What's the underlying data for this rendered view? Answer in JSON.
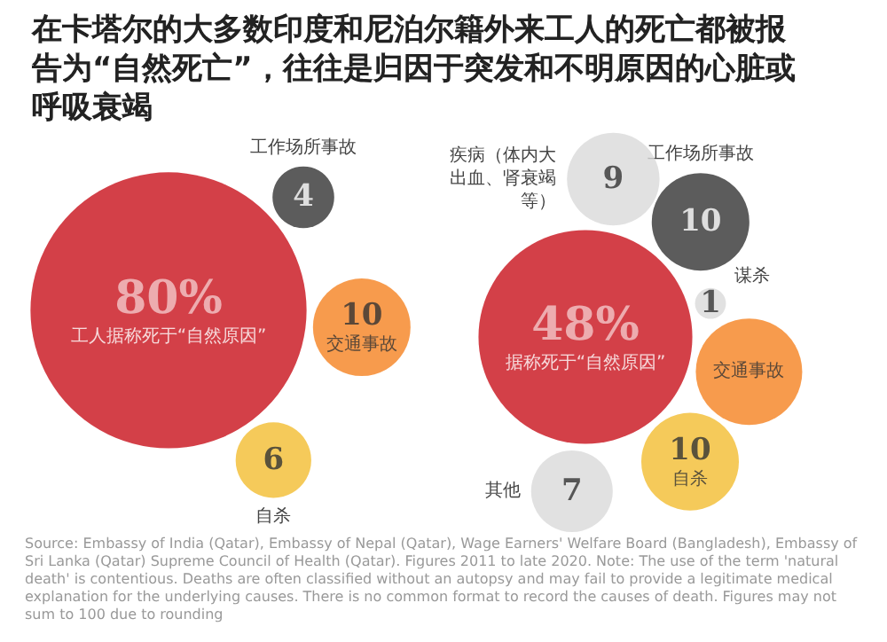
{
  "chart_data": [
    {
      "type": "other",
      "title": "在卡塔尔的大多数印度和尼泊尔籍外来工人的死亡都被报告为“自然死亡”，往往是归因于突发和不明原因的心脏或呼吸衰竭",
      "categories": [
        "工人据称死于“自然原因”",
        "工作场所事故",
        "交通事故",
        "自杀"
      ],
      "values": [
        80,
        4,
        10,
        6
      ],
      "value_labels": [
        "80%",
        "4",
        "10",
        "6"
      ],
      "colors": [
        "#c8101a",
        "#333333",
        "#f58220",
        "#f2bd31"
      ]
    },
    {
      "type": "other",
      "categories": [
        "据称死于“自然原因”",
        "疾病（体内大出血、肾衰竭等）",
        "工作场所事故",
        "谋杀",
        "交通事故",
        "自杀",
        "其他"
      ],
      "values": [
        48,
        9,
        10,
        1,
        null,
        10,
        7
      ],
      "value_labels": [
        "48%",
        "9",
        "10",
        "1",
        null,
        "10",
        "7"
      ],
      "colors": [
        "#c8101a",
        "#d9d9d9",
        "#333333",
        "#d9d9d9",
        "#f58220",
        "#f2bd31",
        "#d9d9d9"
      ],
      "annotations": [
        "Source: Embassy of India (Qatar), Embassy of Nepal (Qatar), Wage Earners' Welfare Board (Bangladesh), Embassy of Sri Lanka (Qatar) Supreme Council of Health (Qatar). Figures 2011 to late 2020. Note: The use of the term 'natural death' is contentious. Deaths are often classified without an autopsy and may fail to provide a legitimate medical explanation for the underlying causes. There is no common format to record the causes of death. Figures may not sum to 100 due to rounding"
      ]
    }
  ]
}
